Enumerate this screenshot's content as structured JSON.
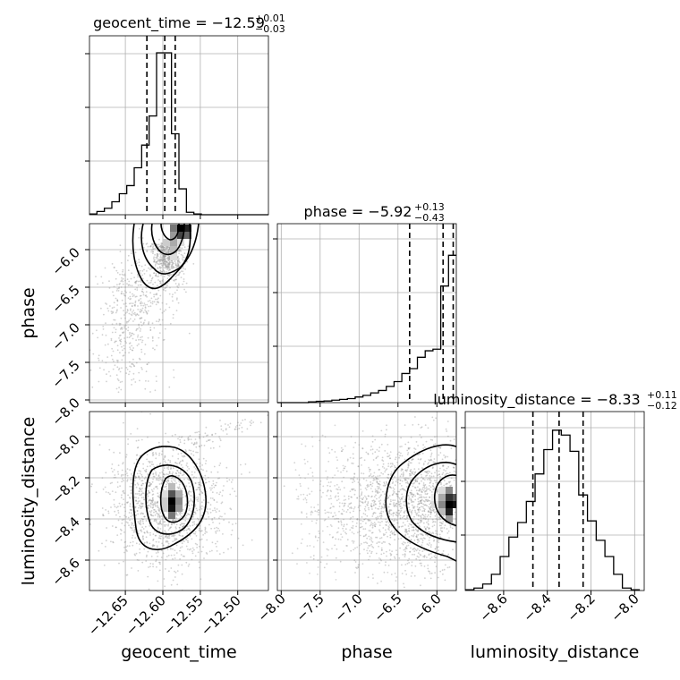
{
  "chart_data": [
    {
      "type": "histogram",
      "panel": "geocent_time marginal",
      "title": "geocent_time = −12.59",
      "title_sup": "+0.01",
      "title_sub": "−0.03",
      "xlim": [
        -12.695,
        -12.455
      ],
      "quantile_lines": [
        -12.618,
        -12.594,
        -12.58
      ],
      "bin_edges": [
        -12.695,
        -12.685,
        -12.675,
        -12.665,
        -12.655,
        -12.645,
        -12.635,
        -12.625,
        -12.615,
        -12.605,
        -12.595,
        -12.585,
        -12.575,
        -12.565,
        -12.555,
        -12.545,
        -12.535,
        -12.525,
        -12.515,
        -12.505,
        -12.495,
        -12.485,
        -12.475,
        -12.465,
        -12.455
      ],
      "density": [
        0.005,
        0.02,
        0.04,
        0.08,
        0.13,
        0.18,
        0.29,
        0.43,
        0.61,
        1.0,
        1.0,
        0.5,
        0.16,
        0.015,
        0.005,
        0,
        0,
        0,
        0,
        0,
        0,
        0,
        0,
        0
      ],
      "grid": true
    },
    {
      "type": "histogram",
      "panel": "phase marginal",
      "title": "phase = −5.92",
      "title_sup": "+0.13",
      "title_sub": "−0.43",
      "xlim": [
        -8.05,
        -5.75
      ],
      "quantile_lines": [
        -6.35,
        -5.92,
        -5.79
      ],
      "bin_edges": [
        -8.05,
        -7.95,
        -7.85,
        -7.75,
        -7.65,
        -7.55,
        -7.45,
        -7.35,
        -7.25,
        -7.15,
        -7.05,
        -6.95,
        -6.85,
        -6.75,
        -6.65,
        -6.55,
        -6.45,
        -6.35,
        -6.25,
        -6.15,
        -6.05,
        -5.95,
        -5.85,
        -5.75
      ],
      "density": [
        0,
        0,
        0,
        0,
        0.005,
        0.008,
        0.01,
        0.015,
        0.02,
        0.025,
        0.035,
        0.045,
        0.06,
        0.075,
        0.1,
        0.13,
        0.18,
        0.21,
        0.28,
        0.32,
        0.33,
        0.72,
        0.91
      ],
      "grid": true
    },
    {
      "type": "histogram",
      "panel": "luminosity_distance marginal",
      "title": "luminosity_distance = −8.33",
      "title_sup": "+0.11",
      "title_sub": "−0.12",
      "xlim": [
        -8.76,
        -7.94
      ],
      "quantile_lines": [
        -8.45,
        -8.33,
        -8.22
      ],
      "bin_edges": [
        -8.76,
        -8.72,
        -8.68,
        -8.64,
        -8.6,
        -8.56,
        -8.52,
        -8.48,
        -8.44,
        -8.4,
        -8.36,
        -8.32,
        -8.28,
        -8.24,
        -8.2,
        -8.16,
        -8.12,
        -8.08,
        -8.04,
        -8.0,
        -7.96
      ],
      "density": [
        0.005,
        0.015,
        0.04,
        0.1,
        0.21,
        0.33,
        0.42,
        0.55,
        0.72,
        0.87,
        0.99,
        0.96,
        0.86,
        0.59,
        0.43,
        0.31,
        0.21,
        0.1,
        0.015,
        0.005
      ],
      "grid": true
    },
    {
      "type": "2d-density",
      "panel": "phase vs geocent_time",
      "xlabel": "",
      "ylabel": "phase",
      "xlim": [
        -12.695,
        -12.455
      ],
      "ylim": [
        -8.0,
        -5.75
      ],
      "yticks": [
        -6.0,
        -6.5,
        -7.0,
        -7.5,
        -8.0
      ],
      "peak": [
        -12.585,
        -5.82
      ]
    },
    {
      "type": "2d-density",
      "panel": "luminosity_distance vs geocent_time",
      "xlabel": "geocent_time",
      "ylabel": "luminosity_distance",
      "xlim": [
        -12.695,
        -12.455
      ],
      "ylim": [
        -8.78,
        -7.91
      ],
      "xticks": [
        -12.65,
        -12.6,
        -12.55,
        -12.5
      ],
      "yticks": [
        -8.0,
        -8.2,
        -8.4,
        -8.6
      ],
      "peak": [
        -12.593,
        -8.33
      ]
    },
    {
      "type": "2d-density",
      "panel": "luminosity_distance vs phase",
      "xlabel": "phase",
      "ylabel": "",
      "xlim": [
        -8.05,
        -5.75
      ],
      "ylim": [
        -8.78,
        -7.91
      ],
      "xticks": [
        -8.0,
        -7.5,
        -7.0,
        -6.5,
        -6.0
      ],
      "peak": [
        -5.82,
        -8.35
      ]
    }
  ],
  "labels": {
    "title_geocent": "geocent_time = −12.59",
    "title_geocent_sup": "+0.01",
    "title_geocent_sub": "−0.03",
    "title_phase": "phase = −5.92",
    "title_phase_sup": "+0.13",
    "title_phase_sub": "−0.43",
    "title_lum": "luminosity_distance = −8.33",
    "title_lum_sup": "+0.11",
    "title_lum_sub": "−0.12",
    "xlabel_geocent": "geocent_time",
    "xlabel_phase": "phase",
    "xlabel_lum": "luminosity_distance",
    "ylabel_phase": "phase",
    "ylabel_lum": "luminosity_distance"
  },
  "tick_labels": {
    "geocent_x": [
      "−12.65",
      "−12.60",
      "−12.55",
      "−12.50"
    ],
    "phase_x": [
      "−8.0",
      "−7.5",
      "−7.0",
      "−6.5",
      "−6.0"
    ],
    "lum_x": [
      "−8.6",
      "−8.4",
      "−8.2",
      "−8.0"
    ],
    "phase_y": [
      "−6.0",
      "−6.5",
      "−7.0",
      "−7.5",
      "−8.0"
    ],
    "lum_y": [
      "−8.0",
      "−8.2",
      "−8.4",
      "−8.6"
    ]
  },
  "colors": {
    "points": "#9a9a9a",
    "grid": "#b0b0b0",
    "line": "#000000"
  }
}
